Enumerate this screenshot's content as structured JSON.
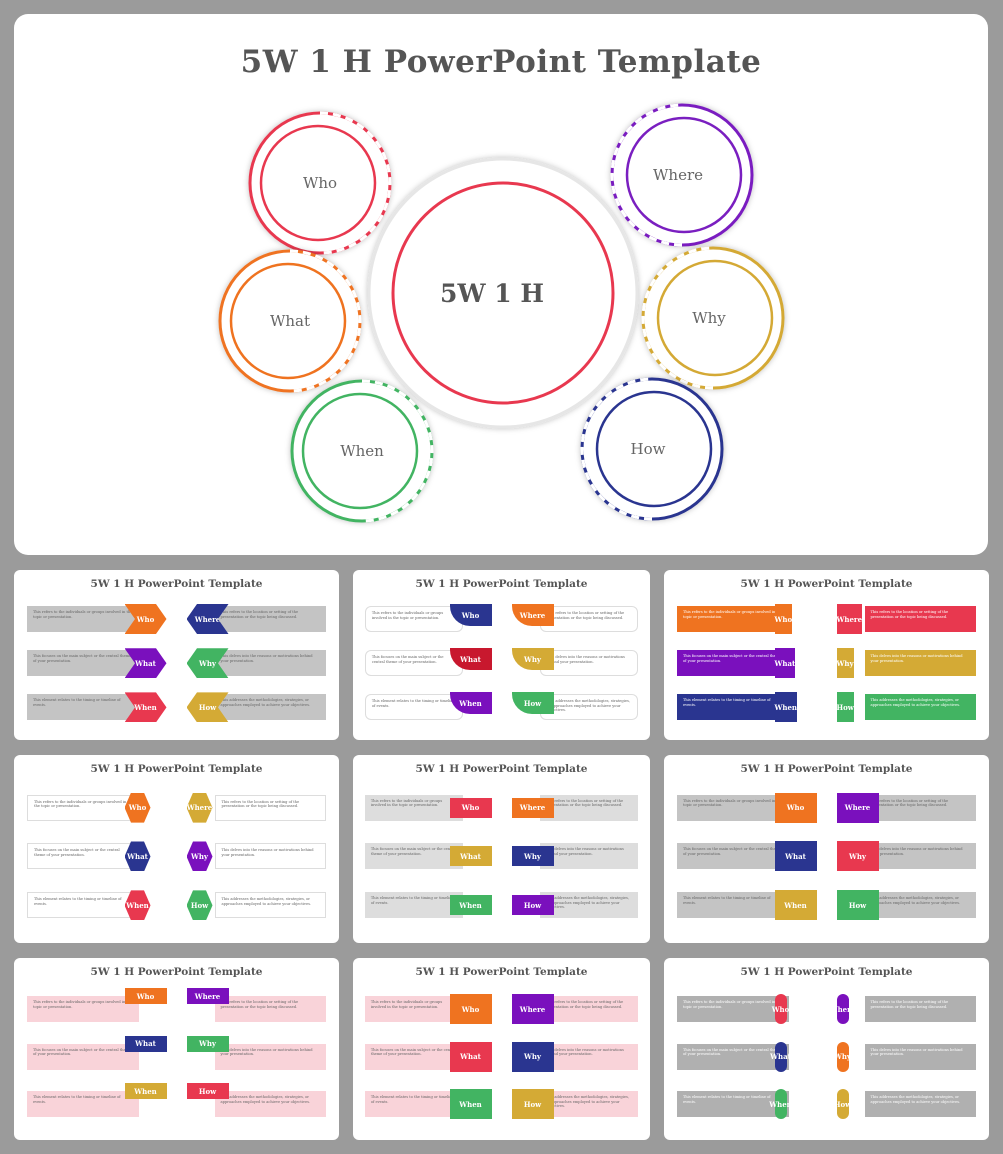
{
  "main": {
    "title": "5W 1 H PowerPoint  Template",
    "center_label": "5W 1 H",
    "center_color": "#e8384f",
    "items": [
      {
        "label": "Who",
        "color": "#e8384f"
      },
      {
        "label": "Where",
        "color": "#7a1fc0"
      },
      {
        "label": "What",
        "color": "#ef7320"
      },
      {
        "label": "Why",
        "color": "#d4a935"
      },
      {
        "label": "When",
        "color": "#42b462"
      },
      {
        "label": "How",
        "color": "#2a3590"
      }
    ]
  },
  "descriptions": {
    "Who": "This refers to the individuals or groups involved in the topic or presentation.",
    "Where": "This refers to the location or setting of the presentation or the topic being discussed.",
    "What": "This focuses on the main subject or the central theme of your presentation.",
    "Why": "This delves into the reasons or motivations behind your presentation.",
    "When": "This element relates to the timing or timeline of events.",
    "How": "This addresses the methodologies, strategies, or approaches employed to achieve your objectives."
  },
  "colors": {
    "orange": "#ef7320",
    "navy": "#2a3590",
    "purple": "#7a10bd",
    "green": "#42b462",
    "red": "#e8384f",
    "gold": "#d4aa35",
    "crimson": "#c8182e",
    "grey": "#9a9a9a"
  },
  "thumbnails": [
    {
      "title": "5W 1 H PowerPoint  Template",
      "left": [
        [
          "Who",
          "orange"
        ],
        [
          "What",
          "purple"
        ],
        [
          "When",
          "red"
        ]
      ],
      "right": [
        [
          "Where",
          "navy"
        ],
        [
          "Why",
          "green"
        ],
        [
          "How",
          "gold"
        ]
      ]
    },
    {
      "title": "5W 1 H PowerPoint  Template",
      "left": [
        [
          "Who",
          "navy"
        ],
        [
          "What",
          "crimson"
        ],
        [
          "When",
          "purple"
        ]
      ],
      "right": [
        [
          "Where",
          "orange"
        ],
        [
          "Why",
          "gold"
        ],
        [
          "How",
          "green"
        ]
      ]
    },
    {
      "title": "5W 1 H PowerPoint  Template",
      "left": [
        [
          "Who",
          "orange"
        ],
        [
          "What",
          "purple"
        ],
        [
          "When",
          "navy"
        ]
      ],
      "right": [
        [
          "Where",
          "red"
        ],
        [
          "Why",
          "gold"
        ],
        [
          "How",
          "green"
        ]
      ]
    },
    {
      "title": "5W 1 H PowerPoint  Template",
      "left": [
        [
          "Who",
          "orange"
        ],
        [
          "What",
          "navy"
        ],
        [
          "When",
          "red"
        ]
      ],
      "right": [
        [
          "Where",
          "gold"
        ],
        [
          "Why",
          "purple"
        ],
        [
          "How",
          "green"
        ]
      ]
    },
    {
      "title": "5W 1 H PowerPoint  Template",
      "left": [
        [
          "Who",
          "red"
        ],
        [
          "What",
          "gold"
        ],
        [
          "When",
          "green"
        ]
      ],
      "right": [
        [
          "Where",
          "orange"
        ],
        [
          "Why",
          "navy"
        ],
        [
          "How",
          "purple"
        ]
      ]
    },
    {
      "title": "5W 1 H PowerPoint  Template",
      "left": [
        [
          "Who",
          "orange"
        ],
        [
          "What",
          "navy"
        ],
        [
          "When",
          "gold"
        ]
      ],
      "right": [
        [
          "Where",
          "purple"
        ],
        [
          "Why",
          "red"
        ],
        [
          "How",
          "green"
        ]
      ]
    },
    {
      "title": "5W 1 H PowerPoint  Template",
      "left": [
        [
          "Who",
          "orange"
        ],
        [
          "What",
          "navy"
        ],
        [
          "When",
          "gold"
        ]
      ],
      "right": [
        [
          "Where",
          "purple"
        ],
        [
          "Why",
          "green"
        ],
        [
          "How",
          "red"
        ]
      ]
    },
    {
      "title": "5W 1 H PowerPoint  Template",
      "left": [
        [
          "Who",
          "orange"
        ],
        [
          "What",
          "red"
        ],
        [
          "When",
          "green"
        ]
      ],
      "right": [
        [
          "Where",
          "purple"
        ],
        [
          "Why",
          "navy"
        ],
        [
          "How",
          "gold"
        ]
      ]
    },
    {
      "title": "5W 1 H PowerPoint  Template",
      "left": [
        [
          "Who",
          "red"
        ],
        [
          "What",
          "navy"
        ],
        [
          "When",
          "green"
        ]
      ],
      "right": [
        [
          "Where",
          "purple"
        ],
        [
          "Why",
          "orange"
        ],
        [
          "How",
          "gold"
        ]
      ]
    }
  ]
}
